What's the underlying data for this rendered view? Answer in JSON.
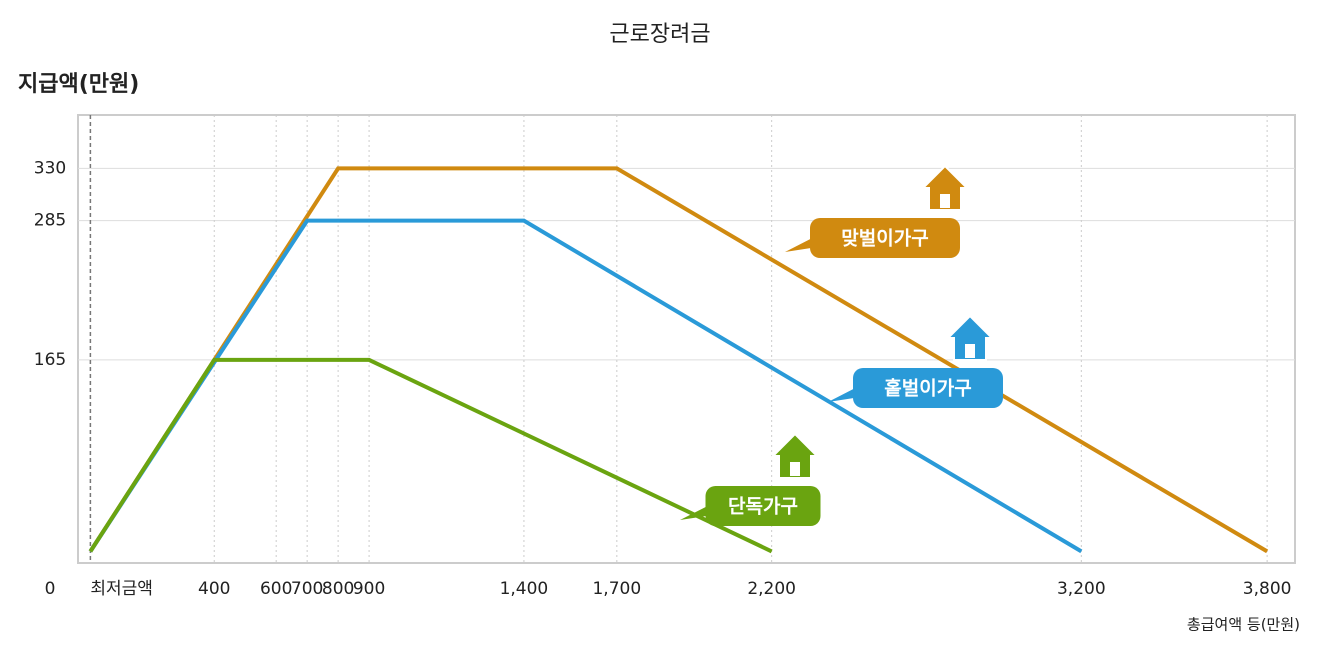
{
  "chart_data": {
    "type": "line",
    "title": "근로장려금",
    "y_label": "지급액(만원)",
    "x_label": "총급여액 등(만원)",
    "xlim": [
      -40,
      3890
    ],
    "ylim": [
      -10,
      376
    ],
    "xticks": [
      {
        "value": 0,
        "label": "최저금액"
      },
      400,
      600,
      700,
      800,
      900,
      {
        "value": 1400,
        "label": "1,400"
      },
      {
        "value": 1700,
        "label": "1,700"
      },
      {
        "value": 2200,
        "label": "2,200"
      },
      {
        "value": 3200,
        "label": "3,200"
      },
      {
        "value": 3800,
        "label": "3,800"
      }
    ],
    "yticks": [
      0,
      165,
      285,
      330
    ],
    "series": [
      {
        "name": "맞벌이가구",
        "color": "#d08a10",
        "x": [
          0,
          800,
          1700,
          3800
        ],
        "values": [
          0,
          330,
          330,
          0
        ]
      },
      {
        "name": "홑벌이가구",
        "color": "#2a9ad8",
        "x": [
          0,
          700,
          1400,
          3200
        ],
        "values": [
          0,
          285,
          285,
          0
        ]
      },
      {
        "name": "단독가구",
        "color": "#6aa410",
        "x": [
          0,
          400,
          900,
          2200
        ],
        "values": [
          0,
          165,
          165,
          0
        ]
      }
    ]
  }
}
